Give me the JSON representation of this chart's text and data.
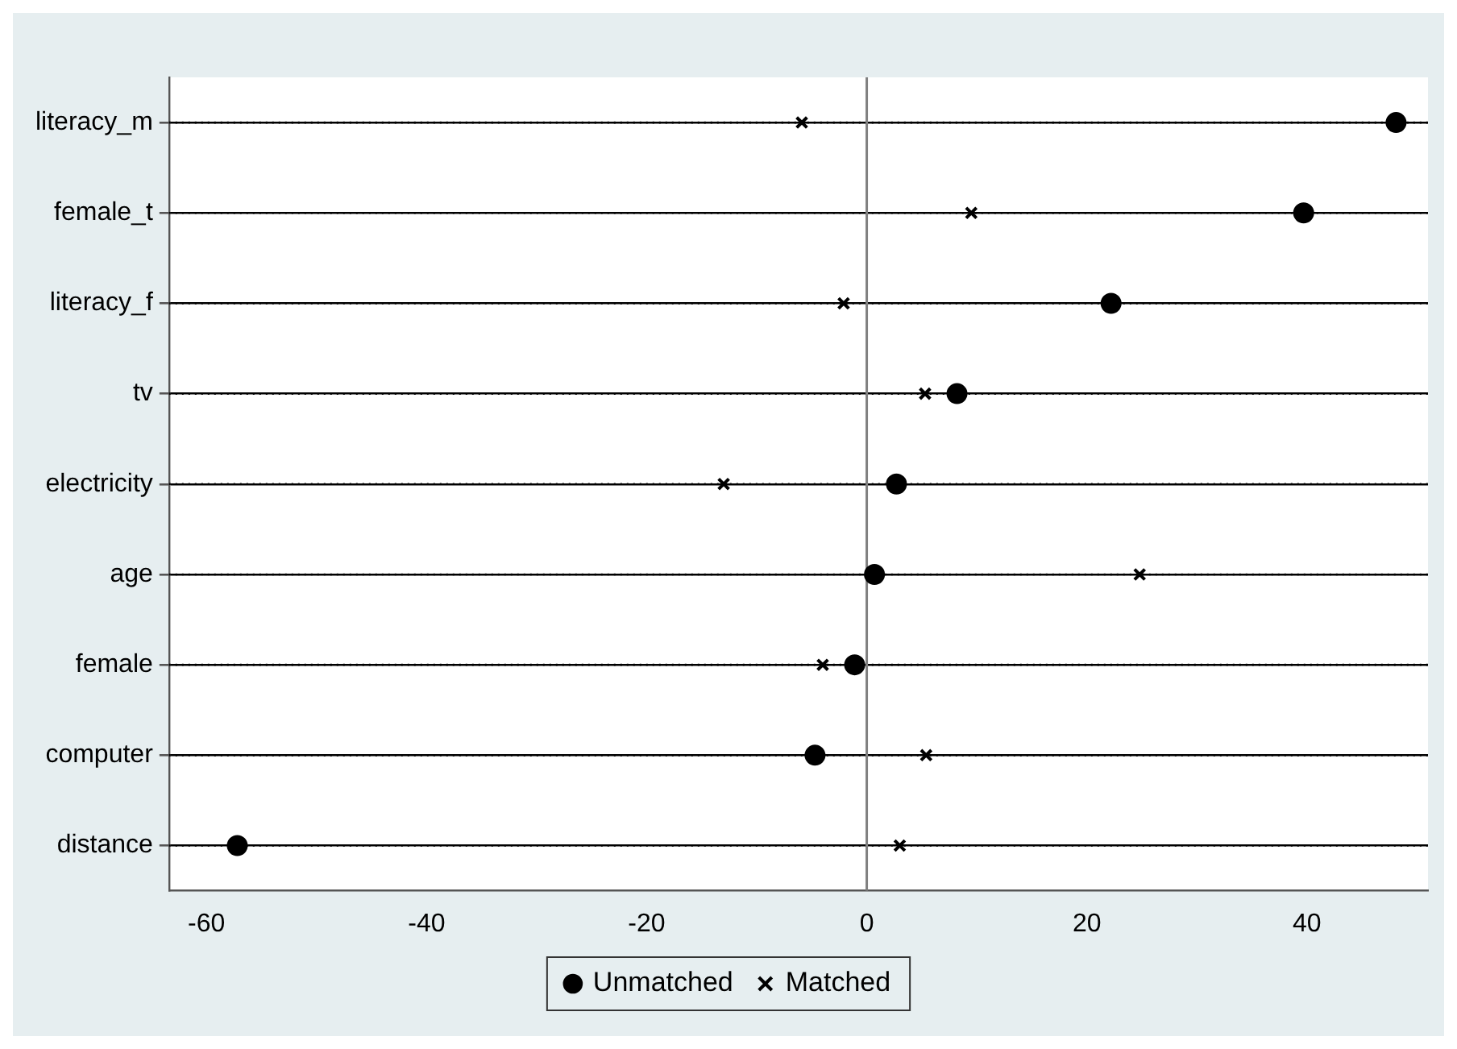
{
  "chart_data": {
    "type": "scatter",
    "categories": [
      "literacy_m",
      "female_t",
      "literacy_f",
      "tv",
      "electricity",
      "age",
      "female",
      "computer",
      "distance"
    ],
    "series": [
      {
        "name": "Unmatched",
        "color": "#000000",
        "marker": "circle",
        "values": [
          48.1,
          39.7,
          22.2,
          8.2,
          2.7,
          0.7,
          -1.1,
          -4.7,
          -57.2
        ]
      },
      {
        "name": "Matched",
        "color": "#000000",
        "marker": "cross",
        "values": [
          -5.9,
          9.5,
          -2.1,
          5.3,
          -13.0,
          24.8,
          -4.0,
          5.4,
          3.0
        ]
      }
    ],
    "orientation": "horizontal",
    "xlim": [
      -63.4,
      51
    ],
    "xticks": [
      -60,
      -40,
      -20,
      0,
      20,
      40
    ],
    "grid": "y",
    "line_style": "dotted",
    "legend": "bottom",
    "ref_lines": [
      {
        "axis": "x",
        "value": 0,
        "color": "#808080"
      }
    ]
  }
}
